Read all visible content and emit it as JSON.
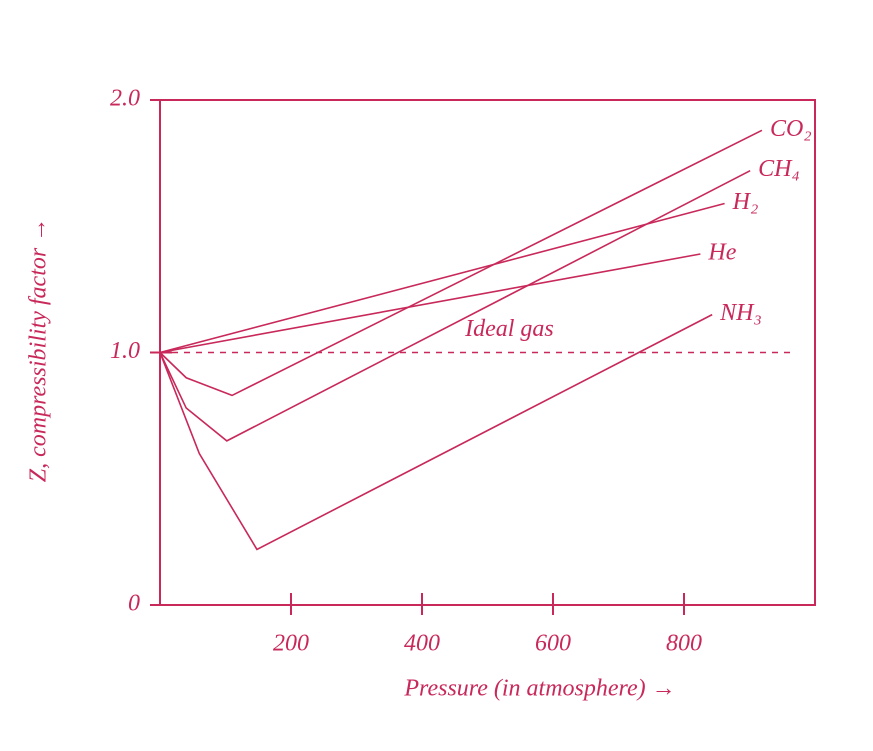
{
  "chart_data": {
    "type": "line",
    "xlabel": "Pressure (in atmosphere) →",
    "ylabel": "Z, compressibility factor →",
    "xlim": [
      0,
      1000
    ],
    "ylim": [
      0,
      2
    ],
    "xticks": [
      200,
      400,
      600,
      800
    ],
    "yticks": [
      0,
      {
        "value": 1,
        "label": "1.0"
      },
      {
        "value": 2,
        "label": "2.0"
      }
    ],
    "series": [
      {
        "name": "CO₂",
        "color": "#c8285a",
        "x": [
          0,
          40,
          110,
          919
        ],
        "values": [
          1.0,
          0.9,
          0.83,
          1.88
        ]
      },
      {
        "name": "CH₄",
        "color": "#c8285a",
        "x": [
          0,
          40,
          102,
          901
        ],
        "values": [
          1.0,
          0.78,
          0.65,
          1.72
        ]
      },
      {
        "name": "H₂",
        "color": "#c8285a",
        "x": [
          0,
          862
        ],
        "values": [
          1.0,
          1.59
        ]
      },
      {
        "name": "He",
        "color": "#c8285a",
        "x": [
          0,
          825
        ],
        "values": [
          1.0,
          1.39
        ]
      },
      {
        "name": "NH₃",
        "color": "#c8285a",
        "x": [
          0,
          60,
          148,
          843
        ],
        "values": [
          1.0,
          0.6,
          0.22,
          1.15
        ]
      },
      {
        "name": "Ideal gas",
        "color": "#c8285a",
        "dashed": true,
        "x": [
          0,
          970
        ],
        "values": [
          1.0,
          1.0
        ]
      }
    ]
  }
}
